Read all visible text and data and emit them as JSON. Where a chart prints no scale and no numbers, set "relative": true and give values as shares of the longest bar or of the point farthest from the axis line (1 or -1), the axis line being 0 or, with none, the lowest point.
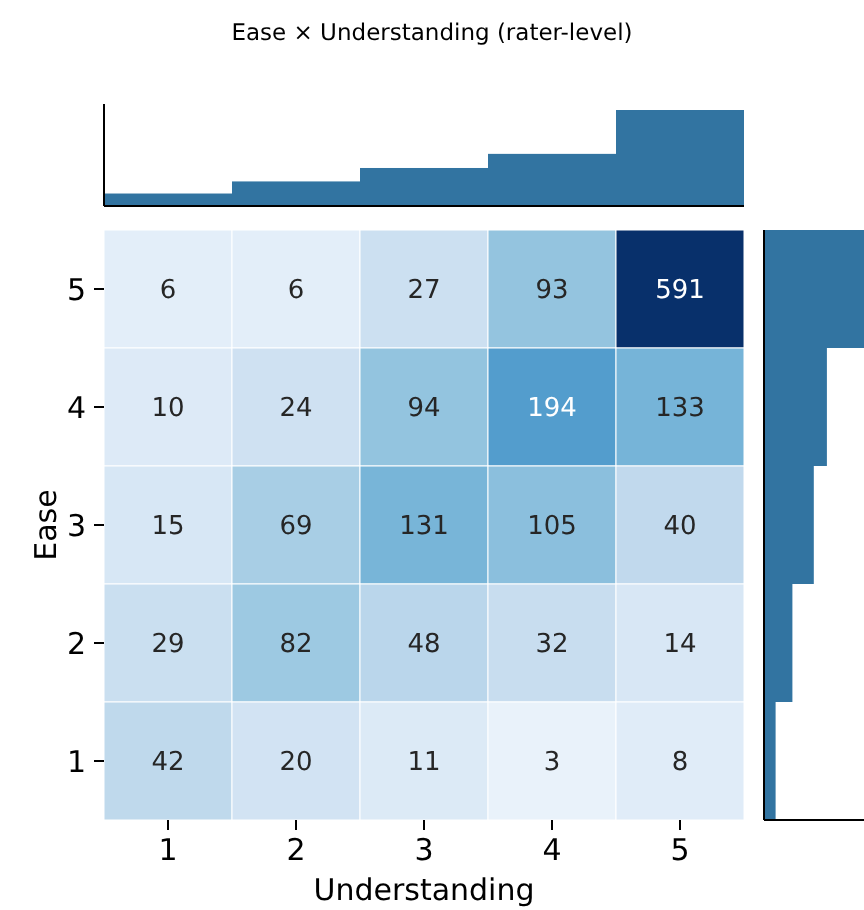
{
  "chart_data": [
    {
      "type": "heatmap",
      "xlabel": "Understanding",
      "ylabel": "Ease",
      "categories": [
        "1",
        "2",
        "3",
        "4",
        "5"
      ],
      "y_categories": [
        "5",
        "4",
        "3",
        "2",
        "1"
      ],
      "data_labels": true,
      "cells": [
        [
          6,
          6,
          27,
          93,
          591
        ],
        [
          10,
          24,
          94,
          194,
          133
        ],
        [
          15,
          69,
          131,
          105,
          40
        ],
        [
          29,
          82,
          48,
          32,
          14
        ],
        [
          42,
          20,
          11,
          3,
          8
        ]
      ]
    },
    {
      "type": "bar",
      "title": "Ease × Understanding (rater-level)",
      "relative": true,
      "categories": [
        null,
        null,
        null,
        null,
        null
      ],
      "color": "#3274a1",
      "values": [
        0.13,
        0.256,
        0.396,
        0.543,
        1
      ]
    },
    {
      "type": "bar",
      "relative": true,
      "orientation": "horizontal",
      "categories": [
        null,
        null,
        null,
        null,
        null
      ],
      "color": "#3274a1",
      "values": [
        1,
        0.629,
        0.498,
        0.284,
        0.116
      ]
    }
  ]
}
